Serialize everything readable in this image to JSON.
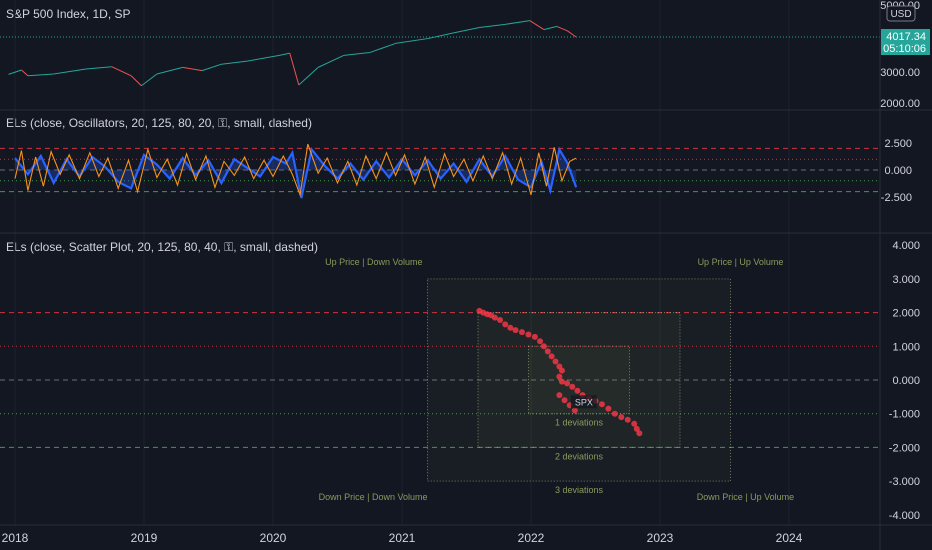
{
  "price_pane": {
    "title": "S&P 500 Index, 1D, SP",
    "currency_button": "USD",
    "price_badge": "4017.34",
    "countdown_badge": "05:10:06",
    "axis_ticks": [
      "5000.00",
      "3000.00",
      "2000.00"
    ]
  },
  "oscillator_pane": {
    "title": "ELs (close, Oscillators, 20, 125, 80, 20, ⚿, small, dashed)",
    "axis_ticks": [
      "2.500",
      "0.000",
      "-2.500"
    ]
  },
  "scatter_pane": {
    "title": "ELs (close, Scatter Plot, 20, 125, 80, 40, ⚿, small, dashed)",
    "axis_ticks": [
      "4.000",
      "3.000",
      "2.000",
      "1.000",
      "0.000",
      "-1.000",
      "-2.000",
      "-3.000",
      "-4.000"
    ],
    "quadrant_labels": {
      "top_left": "Up Price | Down Volume",
      "top_right": "Up Price | Up Volume",
      "bottom_left": "Down Price | Down Volume",
      "bottom_right": "Down Price | Up Volume"
    },
    "deviation_labels": [
      "1 deviations",
      "2 deviations",
      "3 deviations"
    ],
    "point_label": "SPX"
  },
  "time_axis": {
    "labels": [
      "2018",
      "2019",
      "2020",
      "2021",
      "2022",
      "2023",
      "2024"
    ]
  },
  "colors": {
    "background": "#131722",
    "price_line": "#b2b5be",
    "price_up": "#26a69a",
    "price_down": "#ef5350",
    "volume_osc": "#2962ff",
    "price_osc": "#f7931a",
    "scatter_point": "#f23645",
    "dev_red": "#f23645",
    "dev_green": "#4caf50",
    "quadrant_text": "#8a9a5b"
  },
  "chart_data": [
    {
      "type": "line",
      "title": "S&P 500 Index, 1D, SP",
      "y_scale": "log",
      "ylim": [
        1800,
        5200
      ],
      "series": [
        {
          "name": "S&P 500 Index, 1D, SP",
          "points": [
            [
              "2017.95",
              2690
            ],
            [
              "2018.05",
              2820
            ],
            [
              "2018.10",
              2650
            ],
            [
              "2018.30",
              2700
            ],
            [
              "2018.55",
              2850
            ],
            [
              "2018.75",
              2920
            ],
            [
              "2018.90",
              2650
            ],
            [
              "2018.98",
              2380
            ],
            [
              "2019.10",
              2700
            ],
            [
              "2019.30",
              2900
            ],
            [
              "2019.45",
              2800
            ],
            [
              "2019.60",
              3000
            ],
            [
              "2019.80",
              3100
            ],
            [
              "2020.05",
              3300
            ],
            [
              "2020.13",
              3380
            ],
            [
              "2020.20",
              2400
            ],
            [
              "2020.35",
              2900
            ],
            [
              "2020.55",
              3300
            ],
            [
              "2020.75",
              3400
            ],
            [
              "2020.95",
              3750
            ],
            [
              "2021.20",
              3950
            ],
            [
              "2021.40",
              4200
            ],
            [
              "2021.60",
              4450
            ],
            [
              "2021.80",
              4600
            ],
            [
              "2021.99",
              4790
            ],
            [
              "2022.10",
              4350
            ],
            [
              "2022.20",
              4500
            ],
            [
              "2022.28",
              4300
            ],
            [
              "2022.35",
              4017
            ]
          ]
        }
      ],
      "last_value": 4017.34
    },
    {
      "type": "line",
      "title": "ELs (close, Oscillators, 20, 125, 80, 20, ⚿, small, dashed)",
      "ylim": [
        -3.5,
        3.5
      ],
      "levels": [
        2,
        1,
        0,
        -1,
        -2
      ],
      "series": [
        {
          "name": "volume",
          "style": "area",
          "points": [
            [
              "2018.00",
              1.1
            ],
            [
              "2018.10",
              -0.4
            ],
            [
              "2018.20",
              1.3
            ],
            [
              "2018.30",
              -1.2
            ],
            [
              "2018.40",
              1.0
            ],
            [
              "2018.50",
              -0.6
            ],
            [
              "2018.60",
              1.2
            ],
            [
              "2018.70",
              0.3
            ],
            [
              "2018.80",
              -1.1
            ],
            [
              "2018.90",
              -1.7
            ],
            [
              "2019.00",
              1.4
            ],
            [
              "2019.10",
              0.5
            ],
            [
              "2019.20",
              -0.8
            ],
            [
              "2019.30",
              1.1
            ],
            [
              "2019.40",
              -0.5
            ],
            [
              "2019.50",
              0.9
            ],
            [
              "2019.60",
              -1.2
            ],
            [
              "2019.70",
              1.0
            ],
            [
              "2019.80",
              0.2
            ],
            [
              "2019.90",
              -0.6
            ],
            [
              "2020.00",
              1.2
            ],
            [
              "2020.10",
              0.6
            ],
            [
              "2020.15",
              1.6
            ],
            [
              "2020.22",
              -2.6
            ],
            [
              "2020.30",
              1.9
            ],
            [
              "2020.40",
              0.4
            ],
            [
              "2020.50",
              -0.8
            ],
            [
              "2020.60",
              0.6
            ],
            [
              "2020.70",
              -0.9
            ],
            [
              "2020.80",
              0.8
            ],
            [
              "2020.90",
              -0.7
            ],
            [
              "2021.00",
              1.0
            ],
            [
              "2021.10",
              -0.5
            ],
            [
              "2021.20",
              0.9
            ],
            [
              "2021.30",
              -0.8
            ],
            [
              "2021.40",
              0.6
            ],
            [
              "2021.50",
              -1.1
            ],
            [
              "2021.60",
              1.0
            ],
            [
              "2021.70",
              -0.6
            ],
            [
              "2021.80",
              1.3
            ],
            [
              "2021.90",
              -0.9
            ],
            [
              "2022.00",
              -1.6
            ],
            [
              "2022.08",
              0.8
            ],
            [
              "2022.15",
              -1.9
            ],
            [
              "2022.22",
              1.9
            ],
            [
              "2022.28",
              0.7
            ],
            [
              "2022.35",
              -1.6
            ]
          ]
        },
        {
          "name": "price",
          "style": "line",
          "points": [
            [
              "2018.00",
              -0.8
            ],
            [
              "2018.05",
              1.8
            ],
            [
              "2018.10",
              -1.9
            ],
            [
              "2018.16",
              1.2
            ],
            [
              "2018.22",
              -1.5
            ],
            [
              "2018.28",
              1.7
            ],
            [
              "2018.35",
              -0.4
            ],
            [
              "2018.42",
              1.4
            ],
            [
              "2018.50",
              -0.8
            ],
            [
              "2018.58",
              1.6
            ],
            [
              "2018.65",
              -0.6
            ],
            [
              "2018.72",
              1.1
            ],
            [
              "2018.80",
              -1.7
            ],
            [
              "2018.88",
              0.9
            ],
            [
              "2018.95",
              -2.0
            ],
            [
              "2019.03",
              1.9
            ],
            [
              "2019.10",
              -0.7
            ],
            [
              "2019.18",
              1.0
            ],
            [
              "2019.26",
              -1.4
            ],
            [
              "2019.33",
              1.5
            ],
            [
              "2019.40",
              -0.9
            ],
            [
              "2019.48",
              1.3
            ],
            [
              "2019.55",
              -1.6
            ],
            [
              "2019.62",
              0.8
            ],
            [
              "2019.70",
              -0.5
            ],
            [
              "2019.78",
              1.2
            ],
            [
              "2019.85",
              -0.8
            ],
            [
              "2019.93",
              0.9
            ],
            [
              "2020.00",
              -0.6
            ],
            [
              "2020.08",
              1.3
            ],
            [
              "2020.15",
              -0.4
            ],
            [
              "2020.21",
              -2.3
            ],
            [
              "2020.27",
              2.4
            ],
            [
              "2020.35",
              -0.3
            ],
            [
              "2020.42",
              1.1
            ],
            [
              "2020.50",
              -1.2
            ],
            [
              "2020.58",
              0.8
            ],
            [
              "2020.65",
              -1.4
            ],
            [
              "2020.72",
              1.3
            ],
            [
              "2020.80",
              -0.8
            ],
            [
              "2020.88",
              1.6
            ],
            [
              "2020.95",
              -0.5
            ],
            [
              "2021.02",
              1.4
            ],
            [
              "2021.10",
              -1.3
            ],
            [
              "2021.18",
              1.2
            ],
            [
              "2021.25",
              -1.6
            ],
            [
              "2021.33",
              1.5
            ],
            [
              "2021.40",
              -0.6
            ],
            [
              "2021.48",
              1.0
            ],
            [
              "2021.55",
              -1.0
            ],
            [
              "2021.63",
              1.3
            ],
            [
              "2021.70",
              -0.8
            ],
            [
              "2021.78",
              1.6
            ],
            [
              "2021.85",
              -1.3
            ],
            [
              "2021.92",
              1.1
            ],
            [
              "2022.00",
              -2.3
            ],
            [
              "2022.06",
              1.6
            ],
            [
              "2022.12",
              -1.5
            ],
            [
              "2022.18",
              2.1
            ],
            [
              "2022.24",
              -1.0
            ],
            [
              "2022.30",
              0.8
            ],
            [
              "2022.35",
              1.1
            ]
          ]
        }
      ]
    },
    {
      "type": "scatter",
      "title": "ELs (close, Scatter Plot, 20, 125, 80, 40, ⚿, small, dashed)",
      "ylim": [
        -4,
        4
      ],
      "levels": [
        2,
        1,
        0,
        -1,
        -2
      ],
      "deviation_boxes": [
        1,
        2,
        3
      ],
      "points": [
        [
          "2021.60",
          2.05
        ],
        [
          "2021.63",
          2.0
        ],
        [
          "2021.66",
          1.95
        ],
        [
          "2021.69",
          1.92
        ],
        [
          "2021.72",
          1.85
        ],
        [
          "2021.76",
          1.78
        ],
        [
          "2021.80",
          1.65
        ],
        [
          "2021.84",
          1.55
        ],
        [
          "2021.88",
          1.48
        ],
        [
          "2021.93",
          1.42
        ],
        [
          "2021.98",
          1.35
        ],
        [
          "2022.03",
          1.28
        ],
        [
          "2022.07",
          1.15
        ],
        [
          "2022.10",
          1.0
        ],
        [
          "2022.13",
          0.85
        ],
        [
          "2022.16",
          0.7
        ],
        [
          "2022.19",
          0.55
        ],
        [
          "2022.22",
          0.4
        ],
        [
          "2022.24",
          0.28
        ],
        [
          "2022.22",
          0.1
        ],
        [
          "2022.24",
          -0.05
        ],
        [
          "2022.28",
          -0.1
        ],
        [
          "2022.32",
          -0.2
        ],
        [
          "2022.36",
          -0.32
        ],
        [
          "2022.40",
          -0.45
        ],
        [
          "2022.45",
          -0.55
        ],
        [
          "2022.50",
          -0.62
        ],
        [
          "2022.55",
          -0.72
        ],
        [
          "2022.60",
          -0.85
        ],
        [
          "2022.65",
          -1.0
        ],
        [
          "2022.70",
          -1.1
        ],
        [
          "2022.75",
          -1.18
        ],
        [
          "2022.80",
          -1.3
        ],
        [
          "2022.82",
          -1.45
        ],
        [
          "2022.84",
          -1.58
        ],
        [
          "2022.26",
          -0.6
        ],
        [
          "2022.22",
          -0.45
        ],
        [
          "2022.30",
          -0.75
        ],
        [
          "2022.34",
          -0.9
        ]
      ]
    }
  ]
}
